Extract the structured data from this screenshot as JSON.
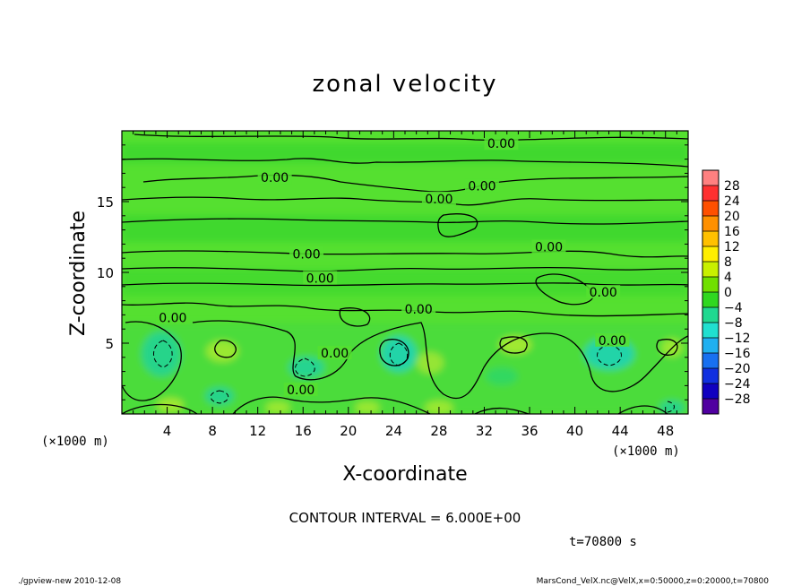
{
  "chart_data": {
    "type": "heatmap",
    "title": "zonal velocity",
    "xlabel": "X-coordinate",
    "ylabel": "Z-coordinate",
    "x_units": "(×1000 m)",
    "y_units": "(×1000 m)",
    "xlim": [
      0,
      50
    ],
    "ylim": [
      0,
      20
    ],
    "x_ticks": [
      "4",
      "8",
      "12",
      "16",
      "20",
      "24",
      "28",
      "32",
      "36",
      "40",
      "44",
      "48"
    ],
    "y_ticks": [
      "5",
      "10",
      "15"
    ],
    "colorbar": {
      "labels": [
        "28",
        "24",
        "20",
        "16",
        "12",
        "8",
        "4",
        "0",
        "−4",
        "−8",
        "−12",
        "−16",
        "−20",
        "−24",
        "−28"
      ],
      "colors": [
        "#ff8080",
        "#ff3030",
        "#ff5000",
        "#ff9000",
        "#ffc000",
        "#ffee00",
        "#c8f000",
        "#70e000",
        "#30d820",
        "#20d890",
        "#20e0d0",
        "#20b0f0",
        "#1870f0",
        "#1030e0",
        "#1000c0",
        "#5000a0"
      ]
    },
    "contour_labels": [
      {
        "x": 33.5,
        "z": 19.1,
        "text": "0.00"
      },
      {
        "x": 13.5,
        "z": 16.7,
        "text": "0.00"
      },
      {
        "x": 28.0,
        "z": 15.2,
        "text": "0.00"
      },
      {
        "x": 31.8,
        "z": 16.1,
        "text": "0.00"
      },
      {
        "x": 16.3,
        "z": 11.3,
        "text": "0.00"
      },
      {
        "x": 37.7,
        "z": 11.8,
        "text": "0.00"
      },
      {
        "x": 17.5,
        "z": 9.6,
        "text": "0.00"
      },
      {
        "x": 26.2,
        "z": 7.4,
        "text": "0.00"
      },
      {
        "x": 42.5,
        "z": 8.6,
        "text": "0.00"
      },
      {
        "x": 4.5,
        "z": 6.8,
        "text": "0.00"
      },
      {
        "x": 18.8,
        "z": 4.3,
        "text": "0.00"
      },
      {
        "x": 43.3,
        "z": 5.2,
        "text": "0.00"
      },
      {
        "x": 15.8,
        "z": 1.7,
        "text": "0.00"
      }
    ],
    "contour_interval_text": "CONTOUR INTERVAL = 6.000E+00",
    "time_text": "t=70800 s"
  },
  "footer": {
    "left": "./gpview-new  2010-12-08",
    "right": "MarsCond_VelX.nc@VelX,x=0:50000,z=0:20000,t=70800"
  }
}
